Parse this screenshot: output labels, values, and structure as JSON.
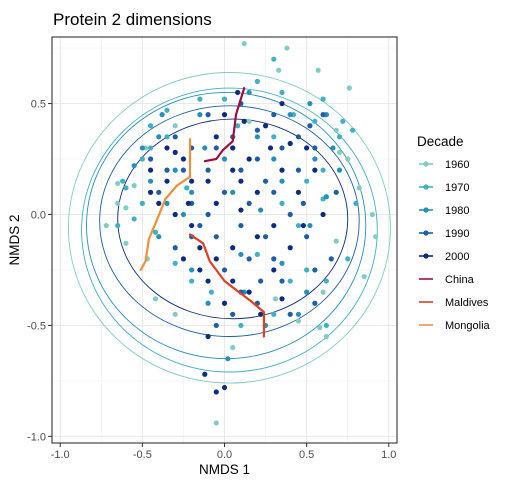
{
  "chart_data": {
    "type": "scatter",
    "title": "Protein 2 dimensions",
    "xlabel": "NMDS 1",
    "ylabel": "NMDS 2",
    "xlim": [
      -1.05,
      1.05
    ],
    "ylim": [
      -1.03,
      0.8
    ],
    "x_ticks": [
      -1.0,
      -0.5,
      0.0,
      0.5,
      1.0
    ],
    "x_tick_labels": [
      "-1.0",
      "-0.5",
      "0.0",
      "0.5",
      "1.0"
    ],
    "y_ticks": [
      -1.0,
      -0.5,
      0.0,
      0.5
    ],
    "y_tick_labels": [
      "-1.0",
      "-0.5",
      "0.0",
      "0.5"
    ],
    "grid": true,
    "legend": {
      "title": "Decade",
      "position": "right",
      "items": [
        {
          "label": "1960",
          "color": "#7fcdc4",
          "kind": "point-line"
        },
        {
          "label": "1970",
          "color": "#3fb0c6",
          "kind": "point-line"
        },
        {
          "label": "1980",
          "color": "#2590bc",
          "kind": "point-line"
        },
        {
          "label": "1990",
          "color": "#1d5ea6",
          "kind": "point-line"
        },
        {
          "label": "2000",
          "color": "#0d2b82",
          "kind": "point-line"
        },
        {
          "label": "China",
          "color": "#a50d3c",
          "kind": "line"
        },
        {
          "label": "Maldives",
          "color": "#e0401f",
          "kind": "line"
        },
        {
          "label": "Mongolia",
          "color": "#f08f3c",
          "kind": "line"
        }
      ]
    },
    "ellipses": [
      {
        "decade": "1960",
        "color": "#7fcdc4",
        "cx": 0.03,
        "cy": -0.06,
        "rx": 0.98,
        "ry": 0.7
      },
      {
        "decade": "1970",
        "color": "#3fb0c6",
        "cx": 0.03,
        "cy": -0.07,
        "rx": 0.9,
        "ry": 0.64
      },
      {
        "decade": "1980",
        "color": "#2590bc",
        "cx": 0.01,
        "cy": -0.05,
        "rx": 0.85,
        "ry": 0.6
      },
      {
        "decade": "1990",
        "color": "#1d5ea6",
        "cx": 0.03,
        "cy": -0.03,
        "rx": 0.79,
        "ry": 0.52
      },
      {
        "decade": "2000",
        "color": "#0d2b82",
        "cx": 0.05,
        "cy": -0.02,
        "rx": 0.7,
        "ry": 0.45
      }
    ],
    "trajectories": [
      {
        "name": "China",
        "color": "#a50d3c",
        "points": [
          [
            0.12,
            0.57
          ],
          [
            0.07,
            0.45
          ],
          [
            0.05,
            0.33
          ],
          [
            -0.01,
            0.29
          ],
          [
            -0.05,
            0.25
          ],
          [
            -0.12,
            0.24
          ]
        ]
      },
      {
        "name": "Maldives",
        "color": "#e0401f",
        "points": [
          [
            -0.21,
            -0.09
          ],
          [
            -0.13,
            -0.13
          ],
          [
            -0.09,
            -0.21
          ],
          [
            0.0,
            -0.3
          ],
          [
            0.07,
            -0.34
          ],
          [
            0.16,
            -0.39
          ],
          [
            0.24,
            -0.44
          ],
          [
            0.24,
            -0.55
          ]
        ]
      },
      {
        "name": "Mongolia",
        "color": "#f08f3c",
        "points": [
          [
            -0.21,
            0.34
          ],
          [
            -0.21,
            0.17
          ],
          [
            -0.29,
            0.13
          ],
          [
            -0.36,
            0.07
          ],
          [
            -0.42,
            -0.04
          ],
          [
            -0.46,
            -0.11
          ],
          [
            -0.48,
            -0.21
          ],
          [
            -0.51,
            -0.25
          ]
        ]
      }
    ],
    "series": [
      {
        "name": "1960",
        "color": "#7fcdc4",
        "points": [
          [
            0.12,
            0.77
          ],
          [
            0.38,
            0.75
          ],
          [
            0.57,
            0.65
          ],
          [
            0.76,
            0.57
          ],
          [
            -0.65,
            0.14
          ],
          [
            -0.55,
            0.13
          ],
          [
            -0.72,
            -0.05
          ],
          [
            -0.65,
            0.05
          ],
          [
            -0.6,
            -0.13
          ],
          [
            0.62,
            -0.55
          ],
          [
            0.33,
            0.65
          ],
          [
            0.58,
            -0.51
          ],
          [
            0.68,
            0.38
          ],
          [
            0.82,
            0.12
          ],
          [
            0.9,
            0.0
          ],
          [
            0.92,
            -0.1
          ],
          [
            0.85,
            -0.28
          ],
          [
            -0.05,
            -0.94
          ],
          [
            0.31,
            -0.38
          ],
          [
            0.45,
            -0.48
          ],
          [
            -0.42,
            -0.38
          ],
          [
            0.75,
            0.25
          ],
          [
            0.68,
            -0.12
          ],
          [
            -0.48,
            0.3
          ],
          [
            -0.3,
            0.4
          ],
          [
            0.05,
            0.3
          ],
          [
            0.15,
            0.42
          ],
          [
            -0.6,
            0.03
          ],
          [
            -0.47,
            -0.2
          ],
          [
            0.5,
            0.3
          ],
          [
            0.7,
            0.28
          ],
          [
            -0.3,
            -0.45
          ],
          [
            0.6,
            -0.35
          ],
          [
            0.05,
            -0.6
          ]
        ]
      },
      {
        "name": "1970",
        "color": "#3fb0c6",
        "points": [
          [
            0.3,
            0.7
          ],
          [
            -0.35,
            0.47
          ],
          [
            -0.62,
            0.15
          ],
          [
            -0.55,
            -0.02
          ],
          [
            -0.5,
            0.25
          ],
          [
            -0.45,
            0.4
          ],
          [
            0.35,
            0.55
          ],
          [
            0.6,
            0.52
          ],
          [
            0.7,
            0.35
          ],
          [
            0.55,
            0.42
          ],
          [
            0.62,
            -0.3
          ],
          [
            0.75,
            -0.2
          ],
          [
            0.62,
            -0.5
          ],
          [
            0.2,
            0.6
          ],
          [
            -0.65,
            -0.05
          ],
          [
            -0.42,
            -0.08
          ],
          [
            0.5,
            0.15
          ],
          [
            0.45,
            -0.05
          ],
          [
            0.3,
            0.35
          ],
          [
            0.78,
            0.38
          ],
          [
            0.8,
            0.05
          ],
          [
            0.6,
            0.07
          ],
          [
            0.72,
            0.42
          ],
          [
            -0.6,
            0.12
          ],
          [
            -0.35,
            0.35
          ],
          [
            -0.15,
            0.52
          ],
          [
            0.0,
            0.52
          ],
          [
            0.1,
            -0.5
          ],
          [
            -0.08,
            -0.35
          ],
          [
            -0.3,
            -0.22
          ],
          [
            -0.23,
            0.12
          ],
          [
            0.4,
            -0.3
          ],
          [
            0.2,
            -0.18
          ],
          [
            0.6,
            0.2
          ],
          [
            0.35,
            0.05
          ],
          [
            -0.2,
            -0.3
          ],
          [
            0.08,
            0.4
          ],
          [
            0.42,
            0.45
          ],
          [
            -0.45,
            0.3
          ],
          [
            0.3,
            -0.45
          ],
          [
            0.5,
            -0.25
          ],
          [
            -0.5,
            0.05
          ]
        ]
      },
      {
        "name": "1980",
        "color": "#2590bc",
        "points": [
          [
            -0.5,
            0.3
          ],
          [
            -0.4,
            0.35
          ],
          [
            -0.45,
            0.15
          ],
          [
            -0.3,
            0.2
          ],
          [
            -0.2,
            0.1
          ],
          [
            0.0,
            0.25
          ],
          [
            0.2,
            0.35
          ],
          [
            0.4,
            0.45
          ],
          [
            0.52,
            0.5
          ],
          [
            0.62,
            0.45
          ],
          [
            0.66,
            0.3
          ],
          [
            0.7,
            0.2
          ],
          [
            0.52,
            -0.05
          ],
          [
            0.45,
            -0.45
          ],
          [
            0.25,
            -0.5
          ],
          [
            0.02,
            -0.65
          ],
          [
            -0.1,
            -0.4
          ],
          [
            -0.2,
            -0.25
          ],
          [
            -0.25,
            0.0
          ],
          [
            0.05,
            0.1
          ],
          [
            0.22,
            0.02
          ],
          [
            0.1,
            -0.18
          ],
          [
            0.35,
            -0.22
          ],
          [
            -0.55,
            0.22
          ],
          [
            -0.35,
            0.05
          ],
          [
            -0.15,
            0.45
          ],
          [
            0.3,
            0.25
          ],
          [
            0.55,
            0.25
          ],
          [
            -0.12,
            0.3
          ],
          [
            0.5,
            -0.35
          ],
          [
            -0.38,
            0.45
          ],
          [
            0.15,
            0.55
          ],
          [
            0.62,
            0.08
          ],
          [
            -0.4,
            -0.1
          ],
          [
            0.12,
            -0.35
          ],
          [
            0.35,
            0.15
          ]
        ]
      },
      {
        "name": "1990",
        "color": "#1d5ea6",
        "points": [
          [
            -0.3,
            0.35
          ],
          [
            -0.2,
            0.3
          ],
          [
            -0.25,
            0.2
          ],
          [
            -0.35,
            0.2
          ],
          [
            -0.4,
            0.1
          ],
          [
            -0.2,
            0.05
          ],
          [
            -0.1,
            0.0
          ],
          [
            0.0,
            0.1
          ],
          [
            0.1,
            0.2
          ],
          [
            0.2,
            0.25
          ],
          [
            0.3,
            0.1
          ],
          [
            0.4,
            0.0
          ],
          [
            0.5,
            -0.1
          ],
          [
            0.55,
            0.3
          ],
          [
            0.45,
            0.35
          ],
          [
            0.3,
            0.45
          ],
          [
            0.1,
            0.5
          ],
          [
            -0.1,
            0.45
          ],
          [
            -0.05,
            -0.1
          ],
          [
            0.0,
            -0.25
          ],
          [
            0.1,
            -0.35
          ],
          [
            0.2,
            -0.4
          ],
          [
            0.35,
            -0.3
          ],
          [
            0.55,
            -0.4
          ],
          [
            -0.05,
            -0.5
          ],
          [
            0.25,
            -0.1
          ],
          [
            0.6,
            0.45
          ],
          [
            0.65,
            -0.2
          ],
          [
            -0.45,
            0.25
          ],
          [
            -0.3,
            -0.15
          ],
          [
            0.15,
            0.05
          ],
          [
            0.3,
            -0.2
          ],
          [
            0.45,
            0.2
          ],
          [
            -0.1,
            0.2
          ],
          [
            0.1,
            -0.05
          ],
          [
            0.2,
            0.38
          ],
          [
            -0.2,
            -0.1
          ],
          [
            0.4,
            -0.45
          ],
          [
            0.15,
            -0.2
          ],
          [
            0.35,
            0.3
          ],
          [
            -0.15,
            -0.05
          ],
          [
            0.05,
            0.35
          ],
          [
            0.48,
            0.05
          ],
          [
            0.52,
            0.4
          ],
          [
            0.68,
            0.1
          ],
          [
            0.55,
            -0.25
          ],
          [
            0.25,
            0.15
          ],
          [
            -0.05,
            0.3
          ],
          [
            0.22,
            -0.3
          ],
          [
            0.05,
            -0.45
          ]
        ]
      },
      {
        "name": "2000",
        "color": "#0d2b82",
        "points": [
          [
            0.08,
            0.55
          ],
          [
            0.0,
            0.45
          ],
          [
            -0.05,
            0.35
          ],
          [
            0.05,
            0.3
          ],
          [
            0.15,
            0.25
          ],
          [
            0.1,
            0.15
          ],
          [
            0.2,
            0.1
          ],
          [
            -0.1,
            0.15
          ],
          [
            -0.25,
            0.25
          ],
          [
            -0.35,
            0.3
          ],
          [
            -0.45,
            0.2
          ],
          [
            -0.4,
            0.05
          ],
          [
            -0.3,
            0.0
          ],
          [
            -0.2,
            -0.05
          ],
          [
            -0.15,
            -0.15
          ],
          [
            -0.05,
            -0.2
          ],
          [
            -0.15,
            -0.25
          ],
          [
            -0.25,
            -0.2
          ],
          [
            0.05,
            -0.3
          ],
          [
            0.15,
            -0.35
          ],
          [
            0.0,
            -0.4
          ],
          [
            -0.1,
            -0.55
          ],
          [
            -0.12,
            -0.72
          ],
          [
            0.0,
            -0.78
          ],
          [
            -0.05,
            -0.8
          ],
          [
            0.3,
            -0.05
          ],
          [
            0.35,
            0.2
          ],
          [
            0.45,
            0.1
          ],
          [
            0.5,
            0.3
          ],
          [
            0.55,
            0.2
          ],
          [
            0.6,
            0.0
          ],
          [
            0.25,
            0.4
          ],
          [
            0.35,
            0.5
          ],
          [
            0.4,
            -0.15
          ],
          [
            0.3,
            -0.25
          ],
          [
            -0.05,
            0.05
          ],
          [
            -0.35,
            0.15
          ],
          [
            -0.3,
            0.28
          ],
          [
            0.05,
            -0.15
          ],
          [
            0.1,
            0.02
          ],
          [
            0.2,
            -0.1
          ],
          [
            0.28,
            0.3
          ],
          [
            0.4,
            0.32
          ],
          [
            -0.2,
            0.15
          ],
          [
            -0.1,
            -0.3
          ],
          [
            0.22,
            -0.45
          ],
          [
            0.12,
            0.42
          ],
          [
            -0.45,
            0.1
          ],
          [
            0.05,
            0.2
          ],
          [
            -0.22,
            0.05
          ],
          [
            0.48,
            -0.05
          ],
          [
            0.35,
            -0.38
          ]
        ]
      }
    ]
  }
}
